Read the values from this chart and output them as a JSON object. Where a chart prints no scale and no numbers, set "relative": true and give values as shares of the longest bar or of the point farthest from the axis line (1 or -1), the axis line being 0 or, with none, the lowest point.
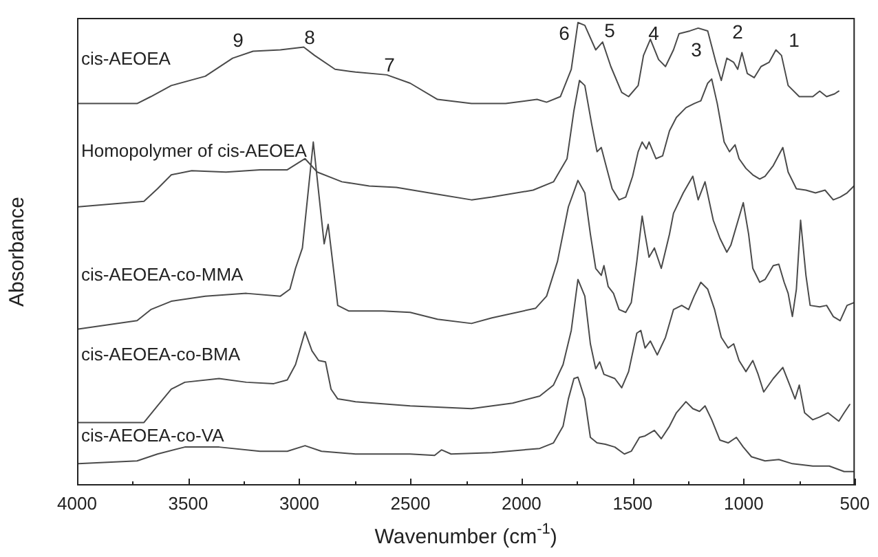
{
  "chart_data": {
    "type": "line",
    "relative": true,
    "xlabel": "Wavenumber (cm$^{-1}$)",
    "ylabel": "Absorbance",
    "legend": false,
    "grid": false,
    "tick_labels": "x",
    "xlim": [
      4000,
      500
    ],
    "xticks": [
      4000,
      {
        "value": 3750,
        "label": null
      },
      3500,
      {
        "value": 3250,
        "label": null
      },
      3000,
      {
        "value": 2750,
        "label": null
      },
      2500,
      {
        "value": 2250,
        "label": null
      },
      2000,
      {
        "value": 1750,
        "label": null
      },
      1500,
      {
        "value": 1250,
        "label": null
      },
      1000,
      {
        "value": 750,
        "label": null
      },
      500
    ],
    "annotations": [
      "9",
      "8",
      "7",
      "6",
      "5",
      "4",
      "3",
      "2",
      "1"
    ],
    "series": [
      {
        "name": "cis-AEOEA",
        "color": "#4a4a4a",
        "x": [
          3994,
          3730,
          3668,
          3576,
          3423,
          3300,
          3208,
          3085,
          2980,
          2931,
          2839,
          2747,
          2606,
          2501,
          2378,
          2225,
          2071,
          1930,
          1887,
          1825,
          1776,
          1746,
          1715,
          1666,
          1635,
          1598,
          1549,
          1518,
          1475,
          1451,
          1420,
          1383,
          1352,
          1316,
          1291,
          1242,
          1205,
          1162,
          1125,
          1101,
          1076,
          1045,
          1027,
          1008,
          984,
          953,
          922,
          886,
          855,
          830,
          800,
          750,
          689,
          658,
          627,
          591,
          572
        ],
        "values": [
          0.825,
          0.825,
          0.84,
          0.864,
          0.884,
          0.923,
          0.938,
          0.941,
          0.947,
          0.929,
          0.899,
          0.893,
          0.887,
          0.869,
          0.834,
          0.825,
          0.825,
          0.834,
          0.828,
          0.84,
          0.899,
          1.0,
          0.994,
          0.941,
          0.958,
          0.905,
          0.849,
          0.84,
          0.864,
          0.929,
          0.964,
          0.92,
          0.905,
          0.941,
          0.976,
          0.982,
          0.988,
          0.982,
          0.914,
          0.875,
          0.923,
          0.914,
          0.899,
          0.935,
          0.89,
          0.881,
          0.905,
          0.914,
          0.941,
          0.929,
          0.864,
          0.84,
          0.84,
          0.852,
          0.84,
          0.846,
          0.852
        ]
      },
      {
        "name": "Homopolymer of cis-AEOEA",
        "color": "#4a4a4a",
        "x": [
          3994,
          3699,
          3638,
          3576,
          3484,
          3330,
          3177,
          3054,
          2974,
          2919,
          2808,
          2685,
          2563,
          2378,
          2225,
          2133,
          1948,
          1856,
          1795,
          1764,
          1739,
          1715,
          1684,
          1660,
          1641,
          1623,
          1592,
          1561,
          1531,
          1500,
          1475,
          1457,
          1438,
          1426,
          1395,
          1365,
          1334,
          1303,
          1260,
          1223,
          1193,
          1162,
          1144,
          1119,
          1088,
          1064,
          1039,
          1021,
          990,
          959,
          928,
          904,
          867,
          824,
          800,
          763,
          720,
          677,
          634,
          597,
          566,
          535,
          504
        ],
        "values": [
          0.602,
          0.614,
          0.641,
          0.671,
          0.68,
          0.677,
          0.682,
          0.682,
          0.706,
          0.677,
          0.656,
          0.647,
          0.644,
          0.629,
          0.617,
          0.623,
          0.638,
          0.656,
          0.706,
          0.81,
          0.875,
          0.864,
          0.78,
          0.721,
          0.73,
          0.697,
          0.641,
          0.617,
          0.623,
          0.668,
          0.721,
          0.742,
          0.727,
          0.742,
          0.706,
          0.712,
          0.766,
          0.795,
          0.816,
          0.825,
          0.831,
          0.869,
          0.878,
          0.825,
          0.742,
          0.721,
          0.736,
          0.706,
          0.685,
          0.671,
          0.662,
          0.668,
          0.691,
          0.73,
          0.677,
          0.641,
          0.638,
          0.632,
          0.638,
          0.617,
          0.623,
          0.632,
          0.647
        ]
      },
      {
        "name": "cis-AEOEA-co-MMA",
        "color": "#4a4a4a",
        "x": [
          3994,
          3730,
          3668,
          3576,
          3423,
          3238,
          3085,
          3042,
          3017,
          2986,
          2937,
          2888,
          2870,
          2839,
          2827,
          2778,
          2624,
          2501,
          2378,
          2225,
          2133,
          1936,
          1887,
          1838,
          1789,
          1746,
          1715,
          1690,
          1666,
          1641,
          1629,
          1610,
          1586,
          1561,
          1531,
          1506,
          1481,
          1457,
          1444,
          1426,
          1402,
          1371,
          1334,
          1316,
          1272,
          1229,
          1205,
          1174,
          1137,
          1107,
          1076,
          1058,
          1002,
          978,
          959,
          928,
          904,
          867,
          842,
          818,
          800,
          781,
          763,
          744,
          720,
          701,
          658,
          627,
          597,
          566,
          535,
          504
        ],
        "values": [
          0.338,
          0.356,
          0.38,
          0.398,
          0.409,
          0.415,
          0.409,
          0.424,
          0.469,
          0.513,
          0.742,
          0.522,
          0.564,
          0.439,
          0.389,
          0.377,
          0.377,
          0.374,
          0.359,
          0.35,
          0.362,
          0.383,
          0.409,
          0.484,
          0.602,
          0.659,
          0.632,
          0.543,
          0.469,
          0.454,
          0.475,
          0.43,
          0.415,
          0.38,
          0.374,
          0.395,
          0.484,
          0.582,
          0.543,
          0.493,
          0.513,
          0.469,
          0.543,
          0.588,
          0.632,
          0.668,
          0.617,
          0.656,
          0.573,
          0.534,
          0.504,
          0.519,
          0.611,
          0.543,
          0.469,
          0.439,
          0.445,
          0.475,
          0.478,
          0.439,
          0.415,
          0.365,
          0.424,
          0.573,
          0.454,
          0.389,
          0.386,
          0.389,
          0.365,
          0.356,
          0.389,
          0.395
        ]
      },
      {
        "name": "cis-AEOEA-co-BMA",
        "color": "#4a4a4a",
        "x": [
          3994,
          3699,
          3638,
          3576,
          3515,
          3361,
          3238,
          3115,
          3054,
          3017,
          2974,
          2943,
          2913,
          2882,
          2857,
          2827,
          2747,
          2501,
          2225,
          2040,
          1918,
          1856,
          1813,
          1776,
          1746,
          1715,
          1690,
          1666,
          1648,
          1629,
          1580,
          1549,
          1518,
          1481,
          1463,
          1444,
          1420,
          1389,
          1352,
          1316,
          1279,
          1248,
          1223,
          1193,
          1162,
          1131,
          1101,
          1070,
          1045,
          1021,
          990,
          959,
          935,
          910,
          867,
          824,
          793,
          769,
          750,
          726,
          689,
          658,
          621,
          572,
          548,
          523
        ],
        "values": [
          0.136,
          0.136,
          0.172,
          0.208,
          0.223,
          0.231,
          0.223,
          0.22,
          0.228,
          0.261,
          0.332,
          0.291,
          0.27,
          0.267,
          0.208,
          0.187,
          0.181,
          0.172,
          0.166,
          0.178,
          0.193,
          0.217,
          0.261,
          0.335,
          0.445,
          0.409,
          0.306,
          0.252,
          0.267,
          0.24,
          0.231,
          0.211,
          0.246,
          0.329,
          0.335,
          0.297,
          0.312,
          0.282,
          0.32,
          0.38,
          0.389,
          0.38,
          0.409,
          0.439,
          0.424,
          0.38,
          0.32,
          0.297,
          0.306,
          0.27,
          0.246,
          0.27,
          0.24,
          0.202,
          0.231,
          0.255,
          0.217,
          0.187,
          0.217,
          0.157,
          0.142,
          0.148,
          0.157,
          0.139,
          0.157,
          0.175
        ]
      },
      {
        "name": "cis-AEOEA-co-VA",
        "color": "#4a4a4a",
        "x": [
          3994,
          3730,
          3638,
          3515,
          3361,
          3177,
          3054,
          2974,
          2900,
          2747,
          2501,
          2391,
          2360,
          2317,
          2133,
          1918,
          1856,
          1813,
          1789,
          1764,
          1746,
          1715,
          1690,
          1660,
          1623,
          1580,
          1537,
          1506,
          1469,
          1444,
          1402,
          1371,
          1334,
          1303,
          1260,
          1229,
          1199,
          1174,
          1144,
          1107,
          1070,
          1033,
          1002,
          965,
          904,
          842,
          781,
          689,
          615,
          548,
          504
        ],
        "values": [
          0.047,
          0.053,
          0.068,
          0.083,
          0.083,
          0.074,
          0.074,
          0.086,
          0.074,
          0.068,
          0.068,
          0.065,
          0.077,
          0.068,
          0.071,
          0.08,
          0.092,
          0.128,
          0.187,
          0.231,
          0.234,
          0.187,
          0.104,
          0.092,
          0.089,
          0.083,
          0.068,
          0.074,
          0.104,
          0.107,
          0.119,
          0.101,
          0.128,
          0.157,
          0.181,
          0.166,
          0.16,
          0.172,
          0.142,
          0.098,
          0.092,
          0.104,
          0.083,
          0.062,
          0.053,
          0.056,
          0.047,
          0.042,
          0.042,
          0.03,
          0.03
        ]
      }
    ]
  }
}
